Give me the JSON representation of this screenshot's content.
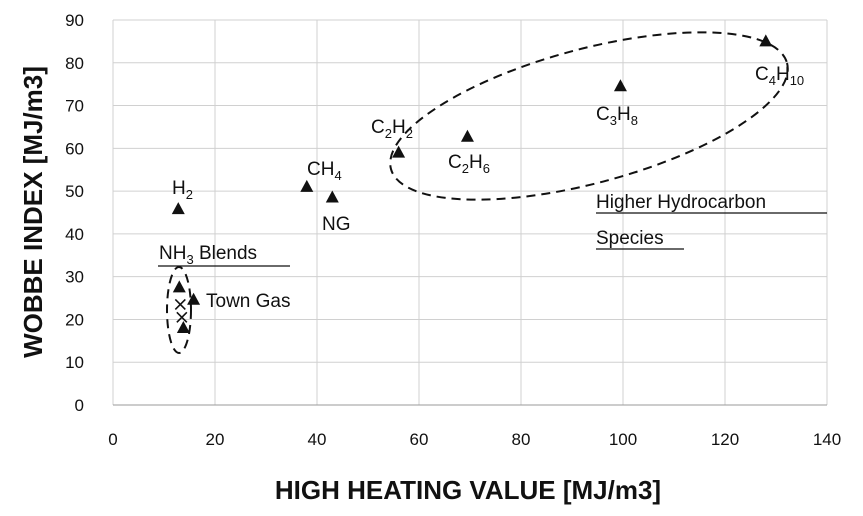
{
  "chart_data": {
    "type": "scatter",
    "xlabel": "HIGH HEATING VALUE [MJ/m3]",
    "ylabel": "WOBBE INDEX [MJ/m3]",
    "xlim": [
      0,
      140
    ],
    "ylim": [
      0,
      90
    ],
    "x_ticks": [
      "0",
      "20",
      "40",
      "60",
      "80",
      "100",
      "120",
      "140"
    ],
    "y_ticks": [
      "0",
      "10",
      "20",
      "30",
      "40",
      "50",
      "60",
      "70",
      "80",
      "90"
    ],
    "grid": true,
    "points": [
      {
        "label_main": "H",
        "label_sub": "2",
        "label_tail": "",
        "x": 12.8,
        "y": 45.8,
        "marker": "triangle"
      },
      {
        "label_main": "CH",
        "label_sub": "4",
        "label_tail": "",
        "x": 38,
        "y": 51,
        "marker": "triangle"
      },
      {
        "label_main": "NG",
        "label_sub": "",
        "label_tail": "",
        "x": 43,
        "y": 48.5,
        "marker": "triangle"
      },
      {
        "label_main": "C",
        "label_sub": "2",
        "label_tail": "H",
        "label_sub2": "2",
        "x": 56,
        "y": 59,
        "marker": "triangle"
      },
      {
        "label_main": "C",
        "label_sub": "2",
        "label_tail": "H",
        "label_sub2": "6",
        "x": 69.5,
        "y": 62.7,
        "marker": "triangle"
      },
      {
        "label_main": "C",
        "label_sub": "3",
        "label_tail": "H",
        "label_sub2": "8",
        "x": 99.5,
        "y": 74.5,
        "marker": "triangle"
      },
      {
        "label_main": "C",
        "label_sub": "4",
        "label_tail": "H",
        "label_sub2": "10",
        "x": 128,
        "y": 85,
        "marker": "triangle"
      },
      {
        "label_main": "Town Gas",
        "label_sub": "",
        "label_tail": "",
        "x": 15.8,
        "y": 24.6,
        "marker": "triangle"
      },
      {
        "label_main": "",
        "label_sub": "",
        "label_tail": "",
        "x": 13,
        "y": 27.5,
        "marker": "triangle"
      },
      {
        "label_main": "",
        "label_sub": "",
        "label_tail": "",
        "x": 13.2,
        "y": 23.5,
        "marker": "x"
      },
      {
        "label_main": "",
        "label_sub": "",
        "label_tail": "",
        "x": 13.5,
        "y": 20.5,
        "marker": "x"
      },
      {
        "label_main": "",
        "label_sub": "",
        "label_tail": "",
        "x": 13.8,
        "y": 18,
        "marker": "triangle"
      }
    ],
    "annotations": [
      {
        "name": "nh3-blends",
        "text_main": "NH",
        "text_sub": "3",
        "text_tail": " Blends",
        "underline": true
      },
      {
        "name": "higher-hydrocarbon",
        "line1": "Higher Hydrocarbon",
        "line2": "Species",
        "underline": true
      }
    ],
    "groups": [
      {
        "name": "nh3-blends-ellipse",
        "center": [
          13.5,
          22.5
        ],
        "rx_units": 2.3,
        "ry_units": 9.7,
        "style": "dashed"
      },
      {
        "name": "hydrocarbon-ellipse",
        "center": [
          90,
          68
        ],
        "style": "dashed"
      }
    ]
  }
}
